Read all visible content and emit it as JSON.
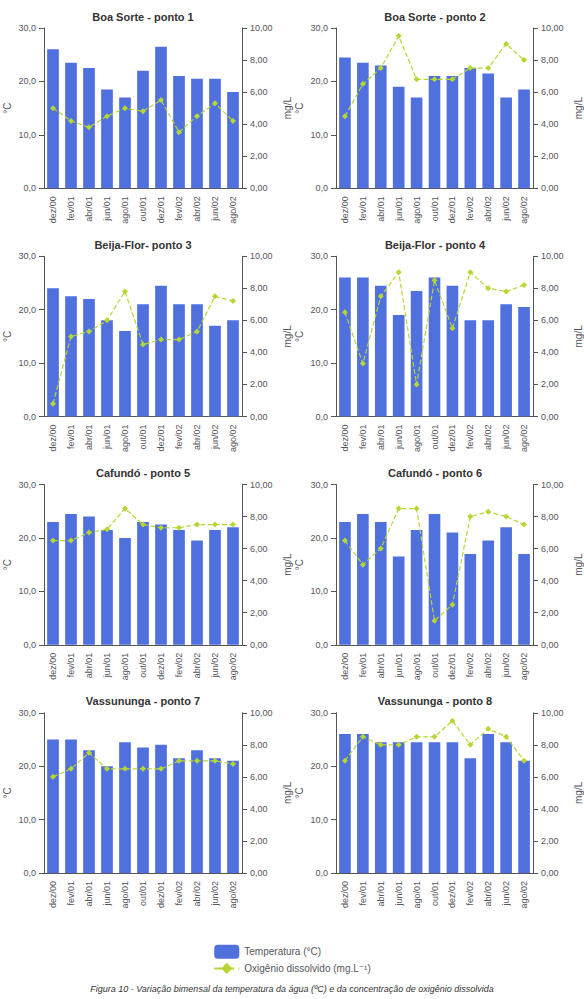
{
  "caption": "Figura 10 - Variação bimensal da temperatura da água (ºC) e da concentração de oxigênio dissolvida",
  "chart_data": [
    {
      "type": "bar",
      "title": "Boa Sorte - ponto 1",
      "categories": [
        "dez/00",
        "fev/01",
        "abr/01",
        "jun/01",
        "ago/01",
        "out/01",
        "dez/01",
        "fev/02",
        "abr/02",
        "jun/02",
        "ago/02"
      ],
      "ylabel": "°C",
      "y2label": "mg/L",
      "ylim": [
        0,
        30
      ],
      "yticks": [
        {
          "value": 0,
          "label": "0,0"
        },
        {
          "value": 10,
          "label": "10,0"
        },
        {
          "value": 20,
          "label": "20,0"
        },
        {
          "value": 30,
          "label": "30,0"
        }
      ],
      "y2lim": [
        0,
        10
      ],
      "y2ticks": [
        {
          "value": 0,
          "label": "0,00"
        },
        {
          "value": 2,
          "label": "2,00"
        },
        {
          "value": 4,
          "label": "4,00"
        },
        {
          "value": 6,
          "label": "6,00"
        },
        {
          "value": 8,
          "label": "8,00"
        },
        {
          "value": 10,
          "label": "10,00"
        }
      ],
      "grid": false,
      "legend": "bottom",
      "series": [
        {
          "name": "Temperatura (°C)",
          "type": "bar",
          "values": [
            26.0,
            23.5,
            22.5,
            18.5,
            17.0,
            22.0,
            26.5,
            21.0,
            20.5,
            20.5,
            18.0
          ]
        },
        {
          "name": "Oxigênio dissolvido (mg.L⁻¹)",
          "type": "line",
          "axis": "y2",
          "marker": "diamond",
          "line_style": "dashed",
          "values": [
            5.0,
            4.2,
            3.8,
            4.5,
            5.0,
            4.8,
            5.5,
            3.5,
            4.5,
            5.3,
            4.2
          ]
        }
      ]
    },
    {
      "type": "bar",
      "title": "Boa Sorte - ponto 2",
      "categories": [
        "dez/00",
        "fev/01",
        "abr/01",
        "jun/01",
        "ago/01",
        "out/01",
        "dez/01",
        "fev/02",
        "abr/02",
        "jun/02",
        "ago/02"
      ],
      "ylabel": "°C",
      "y2label": "mg/L",
      "ylim": [
        0,
        30
      ],
      "yticks": [
        {
          "value": 0,
          "label": "0,0"
        },
        {
          "value": 10,
          "label": "10,0"
        },
        {
          "value": 20,
          "label": "20,0"
        },
        {
          "value": 30,
          "label": "30,0"
        }
      ],
      "y2lim": [
        0,
        10
      ],
      "y2ticks": [
        {
          "value": 0,
          "label": "0,00"
        },
        {
          "value": 2,
          "label": "2,00"
        },
        {
          "value": 4,
          "label": "4,00"
        },
        {
          "value": 6,
          "label": "6,00"
        },
        {
          "value": 8,
          "label": "8,00"
        },
        {
          "value": 10,
          "label": "10,00"
        }
      ],
      "grid": false,
      "legend": "bottom",
      "series": [
        {
          "name": "Temperatura (°C)",
          "type": "bar",
          "values": [
            24.5,
            23.5,
            23.0,
            19.0,
            17.0,
            21.0,
            21.0,
            22.5,
            21.5,
            17.0,
            18.5
          ]
        },
        {
          "name": "Oxigênio dissolvido (mg.L⁻¹)",
          "type": "line",
          "axis": "y2",
          "marker": "diamond",
          "line_style": "dashed",
          "values": [
            4.5,
            6.5,
            7.5,
            9.5,
            6.8,
            6.8,
            6.8,
            7.5,
            7.5,
            9.0,
            8.0
          ]
        }
      ]
    },
    {
      "type": "bar",
      "title": "Beija-Flor- ponto 3",
      "categories": [
        "dez/00",
        "fev/01",
        "abr/01",
        "jun/01",
        "ago/01",
        "out/01",
        "dez/01",
        "fev/02",
        "abr/02",
        "jun/02",
        "ago/02"
      ],
      "ylabel": "°C",
      "y2label": "mg/L",
      "ylim": [
        0,
        30
      ],
      "yticks": [
        {
          "value": 0,
          "label": "0,0"
        },
        {
          "value": 10,
          "label": "10,0"
        },
        {
          "value": 20,
          "label": "20,0"
        },
        {
          "value": 30,
          "label": "30,0"
        }
      ],
      "y2lim": [
        0,
        10
      ],
      "y2ticks": [
        {
          "value": 0,
          "label": "0,00"
        },
        {
          "value": 2,
          "label": "2,00"
        },
        {
          "value": 4,
          "label": "4,00"
        },
        {
          "value": 6,
          "label": "6,00"
        },
        {
          "value": 8,
          "label": "8,00"
        },
        {
          "value": 10,
          "label": "10,00"
        }
      ],
      "grid": false,
      "legend": "bottom",
      "series": [
        {
          "name": "Temperatura (°C)",
          "type": "bar",
          "values": [
            24.0,
            22.5,
            22.0,
            18.0,
            16.0,
            21.0,
            24.5,
            21.0,
            21.0,
            17.0,
            18.0
          ]
        },
        {
          "name": "Oxigênio dissolvido (mg.L⁻¹)",
          "type": "line",
          "axis": "y2",
          "marker": "diamond",
          "line_style": "dashed",
          "values": [
            0.8,
            5.0,
            5.3,
            6.0,
            7.8,
            4.5,
            4.8,
            4.8,
            5.3,
            7.5,
            7.2
          ]
        }
      ]
    },
    {
      "type": "bar",
      "title": "Beija-Flor - ponto 4",
      "categories": [
        "dez/00",
        "fev/01",
        "abr/01",
        "jun/01",
        "ago/01",
        "out/01",
        "dez/01",
        "fev/02",
        "abr/02",
        "jun/02",
        "ago/02"
      ],
      "ylabel": "°C",
      "y2label": "mg/L",
      "ylim": [
        0,
        30
      ],
      "yticks": [
        {
          "value": 0,
          "label": "0,0"
        },
        {
          "value": 10,
          "label": "10,0"
        },
        {
          "value": 20,
          "label": "20,0"
        },
        {
          "value": 30,
          "label": "30,0"
        }
      ],
      "y2lim": [
        0,
        10
      ],
      "y2ticks": [
        {
          "value": 0,
          "label": "0,00"
        },
        {
          "value": 2,
          "label": "2,00"
        },
        {
          "value": 4,
          "label": "4,00"
        },
        {
          "value": 6,
          "label": "6,00"
        },
        {
          "value": 8,
          "label": "8,00"
        },
        {
          "value": 10,
          "label": "10,00"
        }
      ],
      "grid": false,
      "legend": "bottom",
      "series": [
        {
          "name": "Temperatura (°C)",
          "type": "bar",
          "values": [
            26.0,
            26.0,
            24.5,
            19.0,
            23.5,
            26.0,
            24.5,
            18.0,
            18.0,
            21.0,
            20.5
          ]
        },
        {
          "name": "Oxigênio dissolvido (mg.L⁻¹)",
          "type": "line",
          "axis": "y2",
          "marker": "diamond",
          "line_style": "dashed",
          "values": [
            6.5,
            3.3,
            7.5,
            9.0,
            2.0,
            8.5,
            5.5,
            9.0,
            8.0,
            7.8,
            8.2
          ]
        }
      ]
    },
    {
      "type": "bar",
      "title": "Cafundó - ponto 5",
      "categories": [
        "dez/00",
        "fev/01",
        "abr/01",
        "jun/01",
        "ago/01",
        "out/01",
        "dez/01",
        "fev/02",
        "abr/02",
        "jun/02",
        "ago/02"
      ],
      "ylabel": "°C",
      "y2label": "mg/L",
      "ylim": [
        0,
        30
      ],
      "yticks": [
        {
          "value": 0,
          "label": "0,0"
        },
        {
          "value": 10,
          "label": "10,0"
        },
        {
          "value": 20,
          "label": "20,0"
        },
        {
          "value": 30,
          "label": "30,0"
        }
      ],
      "y2lim": [
        0,
        10
      ],
      "y2ticks": [
        {
          "value": 0,
          "label": "0,00"
        },
        {
          "value": 2,
          "label": "2,00"
        },
        {
          "value": 4,
          "label": "4,00"
        },
        {
          "value": 6,
          "label": "6,00"
        },
        {
          "value": 8,
          "label": "8,00"
        },
        {
          "value": 10,
          "label": "10,00"
        }
      ],
      "grid": false,
      "legend": "bottom",
      "series": [
        {
          "name": "Temperatura (°C)",
          "type": "bar",
          "values": [
            23.0,
            24.5,
            24.0,
            21.5,
            20.0,
            23.0,
            22.5,
            21.5,
            19.5,
            21.5,
            22.0
          ]
        },
        {
          "name": "Oxigênio dissolvido (mg.L⁻¹)",
          "type": "line",
          "axis": "y2",
          "marker": "diamond",
          "line_style": "dashed",
          "values": [
            6.5,
            6.5,
            7.0,
            7.2,
            8.5,
            7.5,
            7.3,
            7.3,
            7.5,
            7.5,
            7.5
          ]
        }
      ]
    },
    {
      "type": "bar",
      "title": "Cafundó - ponto 6",
      "categories": [
        "dez/00",
        "fev/01",
        "abr/01",
        "jun/01",
        "ago/01",
        "out/01",
        "dez/01",
        "fev/02",
        "abr/02",
        "jun/02",
        "ago/02"
      ],
      "ylabel": "°C",
      "y2label": "mg/L",
      "ylim": [
        0,
        30
      ],
      "yticks": [
        {
          "value": 0,
          "label": "0,0"
        },
        {
          "value": 10,
          "label": "10,0"
        },
        {
          "value": 20,
          "label": "20,0"
        },
        {
          "value": 30,
          "label": "30,0"
        }
      ],
      "y2lim": [
        0,
        10
      ],
      "y2ticks": [
        {
          "value": 0,
          "label": "0,00"
        },
        {
          "value": 2,
          "label": "2,00"
        },
        {
          "value": 4,
          "label": "4,00"
        },
        {
          "value": 6,
          "label": "6,00"
        },
        {
          "value": 8,
          "label": "8,00"
        },
        {
          "value": 10,
          "label": "10,00"
        }
      ],
      "grid": false,
      "legend": "bottom",
      "series": [
        {
          "name": "Temperatura (°C)",
          "type": "bar",
          "values": [
            23.0,
            24.5,
            23.0,
            16.5,
            21.5,
            24.5,
            21.0,
            17.0,
            19.5,
            22.0,
            17.0
          ]
        },
        {
          "name": "Oxigênio dissolvido (mg.L⁻¹)",
          "type": "line",
          "axis": "y2",
          "marker": "diamond",
          "line_style": "dashed",
          "values": [
            6.5,
            5.0,
            6.0,
            8.5,
            8.5,
            1.5,
            2.5,
            8.0,
            8.3,
            8.0,
            7.5
          ]
        }
      ]
    },
    {
      "type": "bar",
      "title": "Vassununga - ponto 7",
      "categories": [
        "dez/00",
        "fev/01",
        "abr/01",
        "jun/01",
        "ago/01",
        "out/01",
        "dez/01",
        "fev/02",
        "abr/02",
        "jun/02",
        "ago/02"
      ],
      "ylabel": "°C",
      "y2label": "mg/L",
      "ylim": [
        0,
        30
      ],
      "yticks": [
        {
          "value": 0,
          "label": "0,0"
        },
        {
          "value": 10,
          "label": "10,0"
        },
        {
          "value": 20,
          "label": "20,0"
        },
        {
          "value": 30,
          "label": "30,0"
        }
      ],
      "y2lim": [
        0,
        10
      ],
      "y2ticks": [
        {
          "value": 0,
          "label": "0,00"
        },
        {
          "value": 2,
          "label": "2,00"
        },
        {
          "value": 4,
          "label": "4,00"
        },
        {
          "value": 6,
          "label": "6,00"
        },
        {
          "value": 8,
          "label": "8,00"
        },
        {
          "value": 10,
          "label": "10,00"
        }
      ],
      "grid": false,
      "legend": "bottom",
      "series": [
        {
          "name": "Temperatura (°C)",
          "type": "bar",
          "values": [
            25.0,
            25.0,
            23.0,
            20.0,
            24.5,
            23.5,
            24.0,
            21.5,
            23.0,
            21.5,
            21.0
          ]
        },
        {
          "name": "Oxigênio dissolvido (mg.L⁻¹)",
          "type": "line",
          "axis": "y2",
          "marker": "diamond",
          "line_style": "dashed",
          "values": [
            6.0,
            6.5,
            7.5,
            6.5,
            6.5,
            6.5,
            6.5,
            7.0,
            7.0,
            7.0,
            6.8
          ]
        }
      ]
    },
    {
      "type": "bar",
      "title": "Vassununga - ponto 8",
      "categories": [
        "dez/00",
        "fev/01",
        "abr/01",
        "jun/01",
        "ago/01",
        "out/01",
        "dez/01",
        "fev/02",
        "abr/02",
        "jun/02",
        "ago/02"
      ],
      "ylabel": "°C",
      "y2label": "mg/L",
      "ylim": [
        0,
        30
      ],
      "yticks": [
        {
          "value": 0,
          "label": "0,0"
        },
        {
          "value": 10,
          "label": "10,0"
        },
        {
          "value": 20,
          "label": "20,0"
        },
        {
          "value": 30,
          "label": "30,0"
        }
      ],
      "y2lim": [
        0,
        10
      ],
      "y2ticks": [
        {
          "value": 0,
          "label": "0,00"
        },
        {
          "value": 2,
          "label": "2,00"
        },
        {
          "value": 4,
          "label": "4,00"
        },
        {
          "value": 6,
          "label": "6,00"
        },
        {
          "value": 8,
          "label": "8,00"
        },
        {
          "value": 10,
          "label": "10,00"
        }
      ],
      "grid": false,
      "legend": "bottom",
      "series": [
        {
          "name": "Temperatura (°C)",
          "type": "bar",
          "values": [
            26.0,
            26.0,
            24.5,
            24.5,
            24.5,
            24.5,
            24.5,
            21.5,
            26.0,
            24.5,
            21.0
          ]
        },
        {
          "name": "Oxigênio dissolvido (mg.L⁻¹)",
          "type": "line",
          "axis": "y2",
          "marker": "diamond",
          "line_style": "dashed",
          "values": [
            7.0,
            8.5,
            8.0,
            8.0,
            8.5,
            8.5,
            9.5,
            8.0,
            9.0,
            8.5,
            7.0
          ]
        }
      ]
    }
  ]
}
